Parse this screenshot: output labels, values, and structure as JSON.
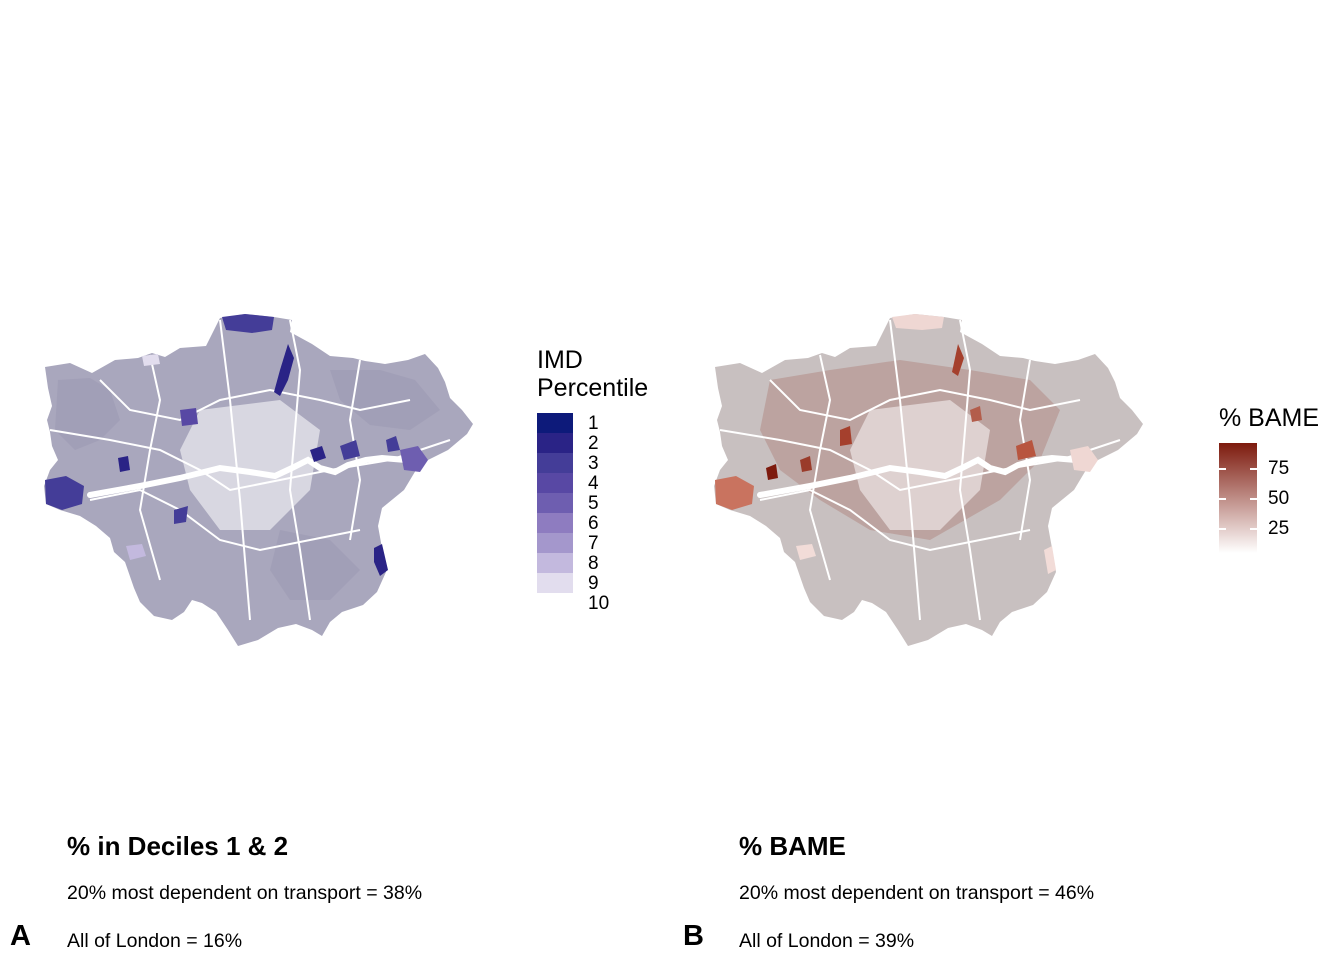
{
  "panel_a": {
    "letter": "A",
    "legend": {
      "title_line1": "IMD",
      "title_line2": "Percentile",
      "deciles": [
        "1",
        "2",
        "3",
        "4",
        "5",
        "6",
        "7",
        "8",
        "9",
        "10"
      ],
      "colors": [
        "#0d1a7a",
        "#2a2386",
        "#443d98",
        "#5848a4",
        "#6e5eb0",
        "#8e7cc0",
        "#a497cc",
        "#c3b9de",
        "#e2ddee",
        "#ffffff"
      ]
    },
    "caption": {
      "title": "% in Deciles 1 & 2",
      "line1": "20% most dependent on transport = 38%",
      "line2": "All of London = 16%"
    }
  },
  "panel_b": {
    "letter": "B",
    "legend": {
      "title": "% BAME",
      "ticks": [
        "75",
        "50",
        "25"
      ],
      "gradient_top": "#7d1a0d",
      "gradient_bottom": "#ffffff"
    },
    "caption": {
      "title": "% BAME",
      "line1": "20% most dependent on transport = 46%",
      "line2": "All of London = 39%"
    }
  },
  "colors": {
    "map_a_base": "#a9a7bd",
    "map_b_base": "#bfaaa7",
    "river": "#ffffff"
  }
}
